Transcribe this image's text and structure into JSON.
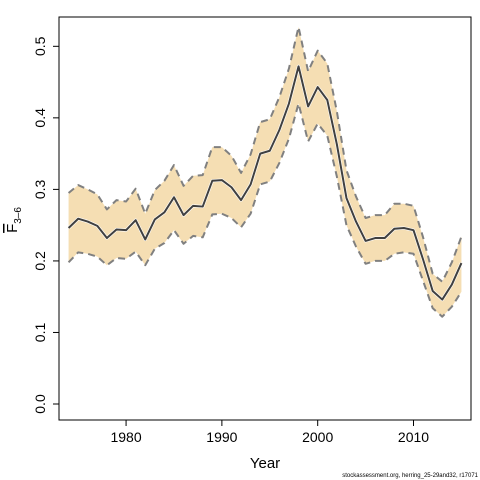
{
  "chart_data": {
    "type": "line",
    "xlabel": "Year",
    "ylabel": "F",
    "ylabel_subscript": "3–6",
    "xlim": [
      1973,
      2016
    ],
    "ylim": [
      0,
      0.55
    ],
    "x_ticks": [
      1980,
      1990,
      2000,
      2010
    ],
    "y_ticks": [
      0.0,
      0.1,
      0.2,
      0.3,
      0.4,
      0.5
    ],
    "y_tick_labels": [
      "0.0",
      "0.1",
      "0.2",
      "0.3",
      "0.4",
      "0.5"
    ],
    "grid": false,
    "legend": "none",
    "colors": {
      "band": "#f5deb3",
      "estimate": "#404040",
      "bounds": "#808080"
    },
    "series": [
      {
        "x": [
          1974,
          1975,
          1976,
          1977,
          1978,
          1979,
          1980,
          1981,
          1982,
          1983,
          1984,
          1985,
          1986,
          1987,
          1988,
          1989,
          1990,
          1991,
          1992,
          1993,
          1994,
          1995,
          1996,
          1997,
          1998,
          1999,
          2000,
          2001,
          2002,
          2003,
          2004,
          2005,
          2006,
          2007,
          2008,
          2009,
          2010,
          2011,
          2012,
          2013,
          2014,
          2015
        ],
        "values": [
          0.246,
          0.259,
          0.255,
          0.249,
          0.232,
          0.244,
          0.243,
          0.257,
          0.23,
          0.258,
          0.268,
          0.289,
          0.264,
          0.277,
          0.276,
          0.312,
          0.313,
          0.303,
          0.285,
          0.307,
          0.35,
          0.354,
          0.383,
          0.42,
          0.472,
          0.416,
          0.443,
          0.425,
          0.363,
          0.288,
          0.255,
          0.228,
          0.232,
          0.232,
          0.245,
          0.246,
          0.243,
          0.202,
          0.158,
          0.146,
          0.167,
          0.197
        ],
        "lower": [
          0.198,
          0.212,
          0.21,
          0.206,
          0.194,
          0.204,
          0.203,
          0.213,
          0.194,
          0.217,
          0.225,
          0.243,
          0.224,
          0.235,
          0.233,
          0.265,
          0.266,
          0.26,
          0.247,
          0.266,
          0.307,
          0.311,
          0.337,
          0.371,
          0.42,
          0.367,
          0.392,
          0.375,
          0.318,
          0.25,
          0.22,
          0.196,
          0.2,
          0.2,
          0.21,
          0.212,
          0.21,
          0.172,
          0.134,
          0.122,
          0.136,
          0.157
        ],
        "upper": [
          0.295,
          0.306,
          0.3,
          0.293,
          0.272,
          0.285,
          0.283,
          0.301,
          0.266,
          0.299,
          0.312,
          0.334,
          0.305,
          0.319,
          0.32,
          0.359,
          0.359,
          0.347,
          0.323,
          0.349,
          0.394,
          0.398,
          0.429,
          0.469,
          0.527,
          0.465,
          0.494,
          0.476,
          0.409,
          0.327,
          0.29,
          0.26,
          0.264,
          0.264,
          0.28,
          0.28,
          0.277,
          0.233,
          0.182,
          0.171,
          0.198,
          0.234
        ]
      }
    ]
  },
  "footer": "stockassessment.org, herring_25-29and32, r17071"
}
